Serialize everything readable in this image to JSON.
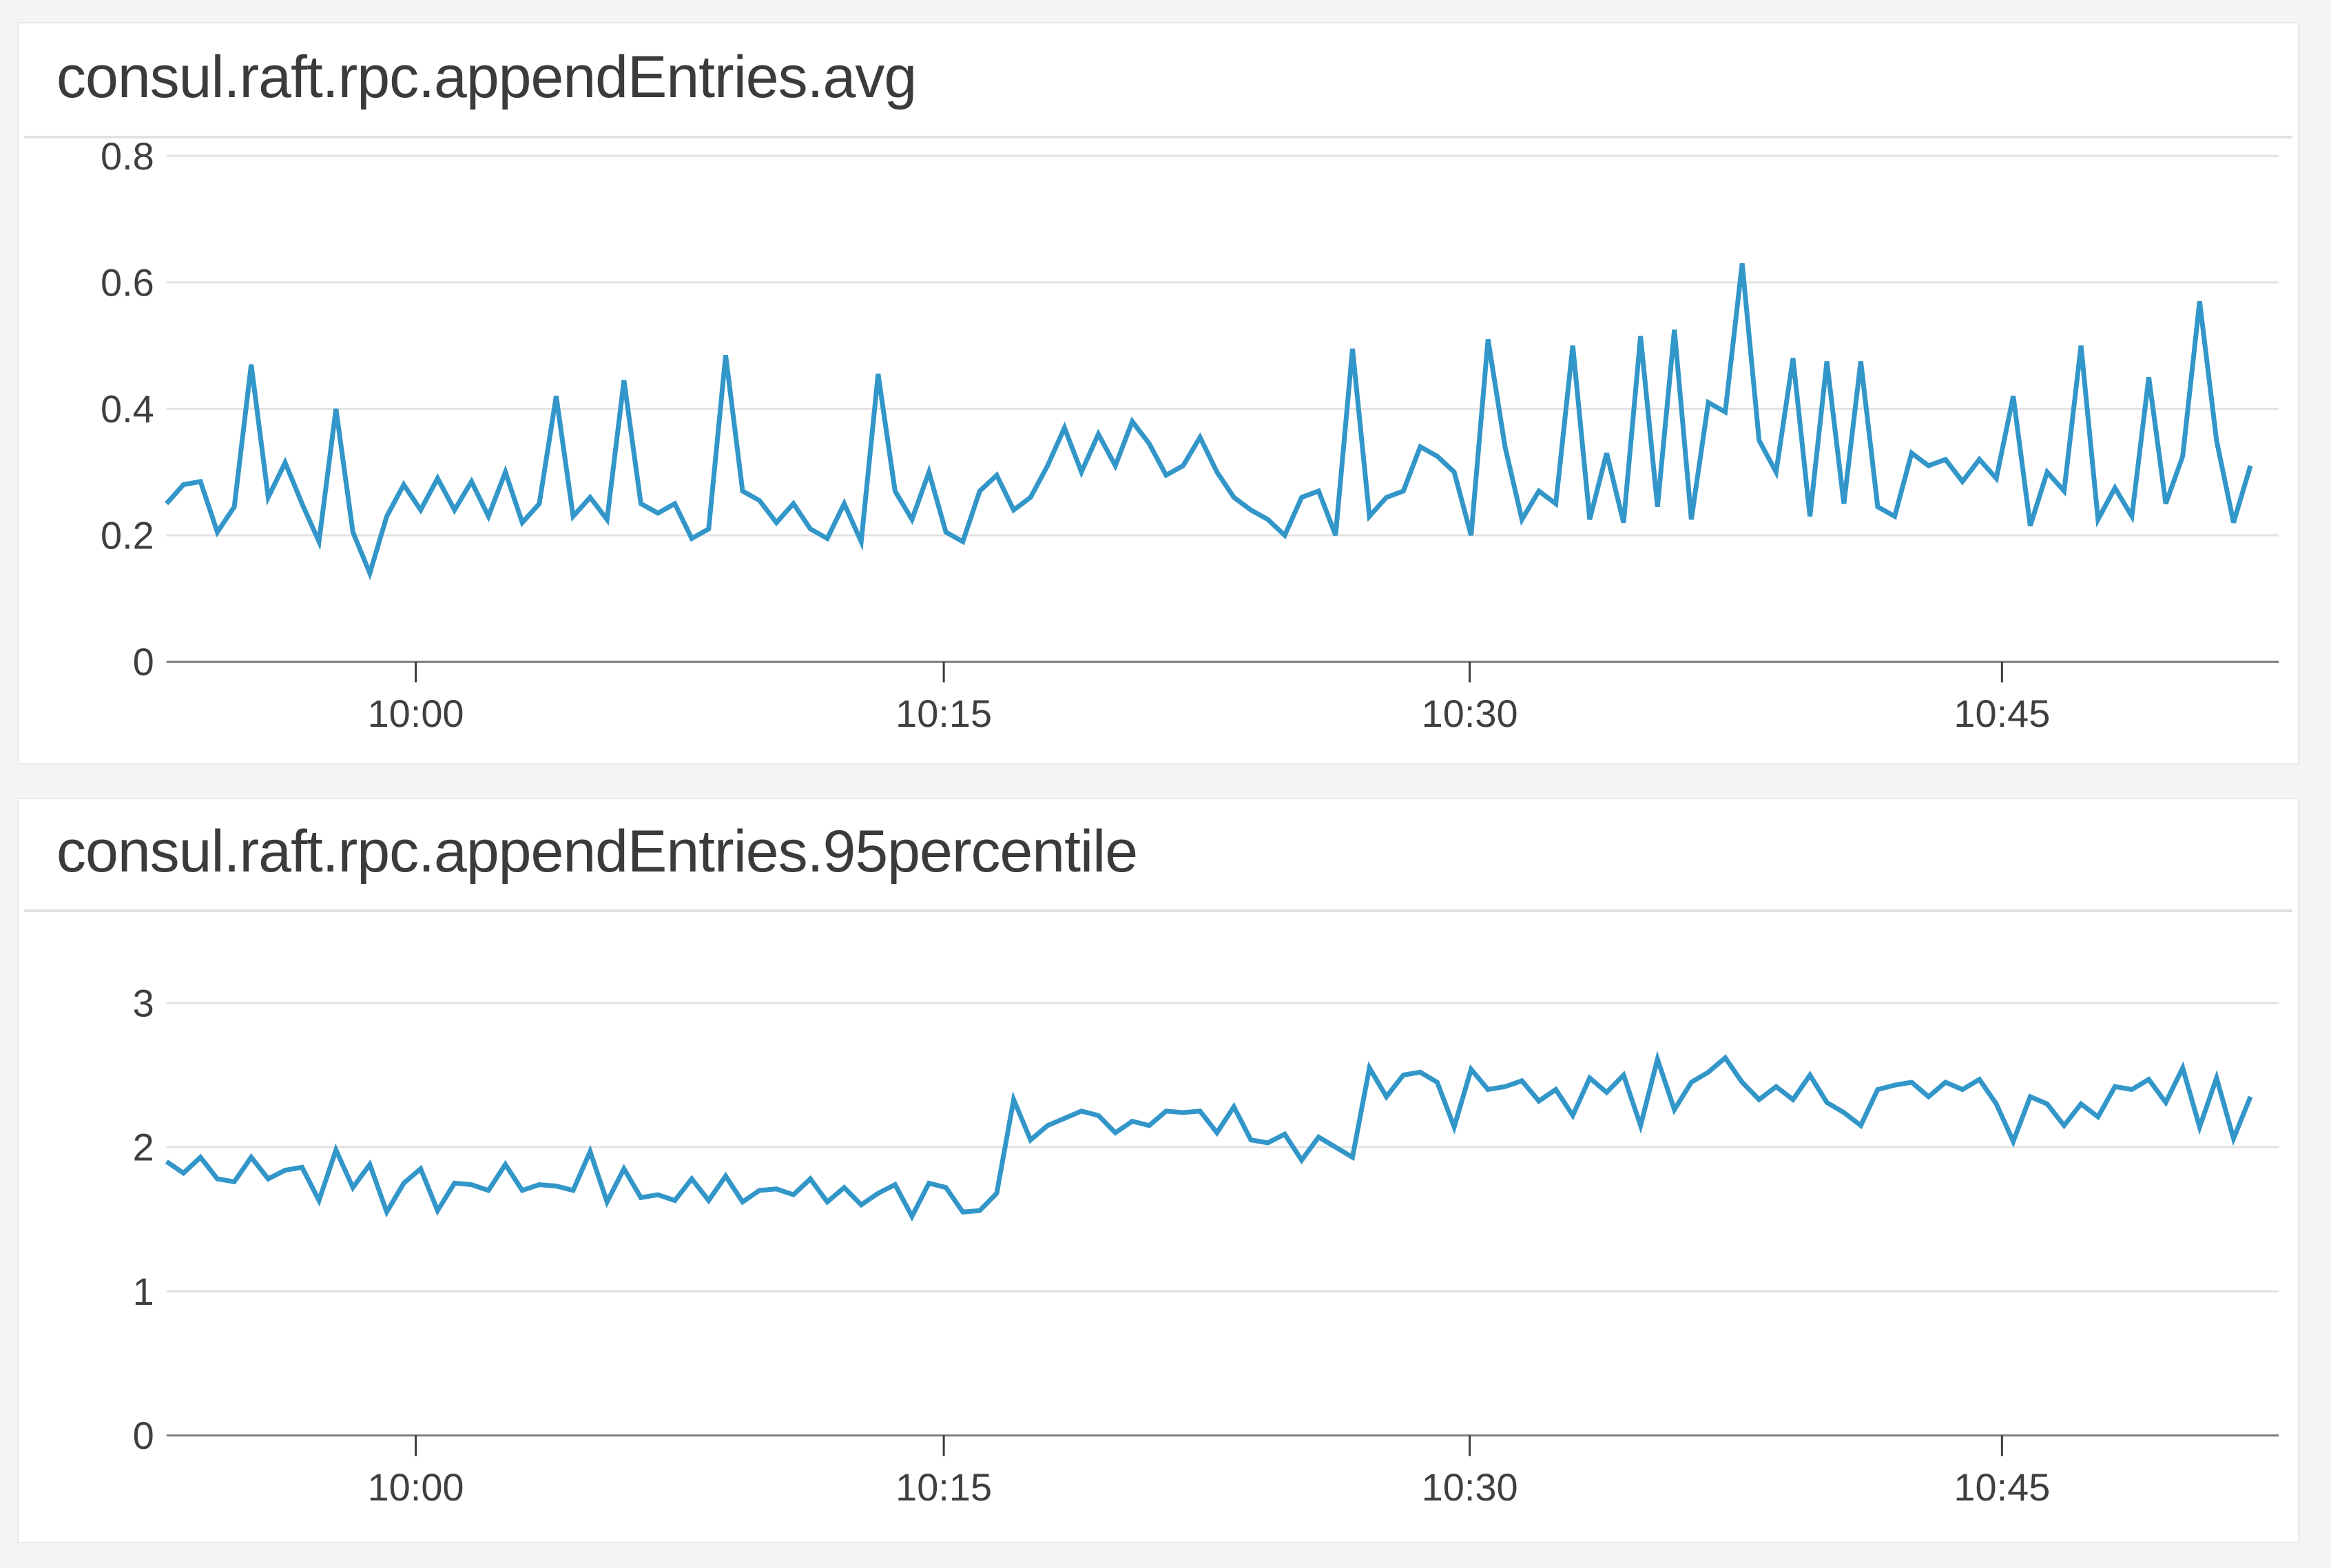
{
  "page": {
    "background": "#f4f4f4",
    "card_background": "#ffffff",
    "card_border": "#e9e9e9",
    "gridline_color": "#e3e3e3",
    "axis_line_color": "#7d7d7d",
    "tick_mark_color": "#3c3c3c",
    "tick_label_color": "#3f3f3f",
    "title_color": "#3b3b3b"
  },
  "chart_data": [
    {
      "type": "line",
      "title": "consul.raft.rpc.appendEntries.avg",
      "series_color": "#3296c9",
      "legend": "none",
      "grid": "horizontal",
      "ylim": [
        0,
        0.8
      ],
      "y_ticks": [
        "0.8",
        "0.6",
        "0.4",
        "0.2",
        "0"
      ],
      "y_tick_values": [
        0.8,
        0.6,
        0.4,
        0.2,
        0
      ],
      "x_ticks": [
        {
          "label": "10:00",
          "f": 0.118
        },
        {
          "label": "10:15",
          "f": 0.368
        },
        {
          "label": "10:30",
          "f": 0.617
        },
        {
          "label": "10:45",
          "f": 0.869
        }
      ],
      "x_range_approx": [
        "9:52",
        "10:52"
      ],
      "values": [
        0.25,
        0.28,
        0.285,
        0.205,
        0.245,
        0.47,
        0.26,
        0.315,
        0.25,
        0.19,
        0.4,
        0.205,
        0.14,
        0.23,
        0.28,
        0.24,
        0.29,
        0.24,
        0.285,
        0.23,
        0.3,
        0.22,
        0.25,
        0.42,
        0.23,
        0.26,
        0.225,
        0.445,
        0.25,
        0.235,
        0.25,
        0.195,
        0.21,
        0.485,
        0.27,
        0.255,
        0.22,
        0.25,
        0.21,
        0.195,
        0.25,
        0.19,
        0.455,
        0.27,
        0.225,
        0.3,
        0.205,
        0.19,
        0.27,
        0.295,
        0.24,
        0.26,
        0.31,
        0.37,
        0.3,
        0.36,
        0.31,
        0.38,
        0.345,
        0.295,
        0.31,
        0.355,
        0.3,
        0.26,
        0.24,
        0.225,
        0.2,
        0.26,
        0.27,
        0.2,
        0.495,
        0.23,
        0.26,
        0.27,
        0.34,
        0.325,
        0.3,
        0.2,
        0.51,
        0.34,
        0.225,
        0.27,
        0.25,
        0.5,
        0.225,
        0.33,
        0.22,
        0.515,
        0.245,
        0.525,
        0.225,
        0.41,
        0.395,
        0.63,
        0.35,
        0.3,
        0.48,
        0.23,
        0.475,
        0.25,
        0.475,
        0.245,
        0.23,
        0.33,
        0.31,
        0.32,
        0.285,
        0.32,
        0.29,
        0.42,
        0.215,
        0.3,
        0.27,
        0.5,
        0.225,
        0.275,
        0.23,
        0.45,
        0.25,
        0.325,
        0.57,
        0.35,
        0.22,
        0.31
      ]
    },
    {
      "type": "line",
      "title": "consul.raft.rpc.appendEntries.95percentile",
      "series_color": "#3296c9",
      "legend": "none",
      "grid": "horizontal",
      "ylim": [
        0,
        3
      ],
      "y_ticks": [
        "3",
        "2",
        "1",
        "0"
      ],
      "y_tick_values": [
        3,
        2,
        1,
        0
      ],
      "x_ticks": [
        {
          "label": "10:00",
          "f": 0.118
        },
        {
          "label": "10:15",
          "f": 0.368
        },
        {
          "label": "10:30",
          "f": 0.617
        },
        {
          "label": "10:45",
          "f": 0.869
        }
      ],
      "x_range_approx": [
        "9:52",
        "10:52"
      ],
      "values": [
        1.9,
        1.82,
        1.93,
        1.78,
        1.76,
        1.93,
        1.78,
        1.84,
        1.86,
        1.63,
        1.98,
        1.72,
        1.88,
        1.55,
        1.75,
        1.85,
        1.56,
        1.75,
        1.74,
        1.7,
        1.88,
        1.7,
        1.74,
        1.73,
        1.7,
        1.97,
        1.62,
        1.85,
        1.65,
        1.67,
        1.63,
        1.78,
        1.63,
        1.8,
        1.62,
        1.7,
        1.71,
        1.67,
        1.78,
        1.62,
        1.72,
        1.6,
        1.68,
        1.74,
        1.52,
        1.75,
        1.72,
        1.55,
        1.56,
        1.68,
        2.33,
        2.05,
        2.15,
        2.2,
        2.25,
        2.22,
        2.1,
        2.18,
        2.15,
        2.25,
        2.24,
        2.25,
        2.1,
        2.28,
        2.05,
        2.03,
        2.09,
        1.91,
        2.07,
        2.0,
        1.93,
        2.55,
        2.35,
        2.5,
        2.52,
        2.45,
        2.14,
        2.54,
        2.4,
        2.42,
        2.46,
        2.32,
        2.4,
        2.22,
        2.48,
        2.38,
        2.5,
        2.15,
        2.61,
        2.26,
        2.45,
        2.52,
        2.62,
        2.45,
        2.33,
        2.42,
        2.33,
        2.5,
        2.31,
        2.24,
        2.15,
        2.4,
        2.43,
        2.45,
        2.35,
        2.45,
        2.4,
        2.47,
        2.3,
        2.04,
        2.35,
        2.3,
        2.15,
        2.3,
        2.21,
        2.42,
        2.4,
        2.47,
        2.31,
        2.55,
        2.14,
        2.48,
        2.06,
        2.35
      ]
    }
  ]
}
